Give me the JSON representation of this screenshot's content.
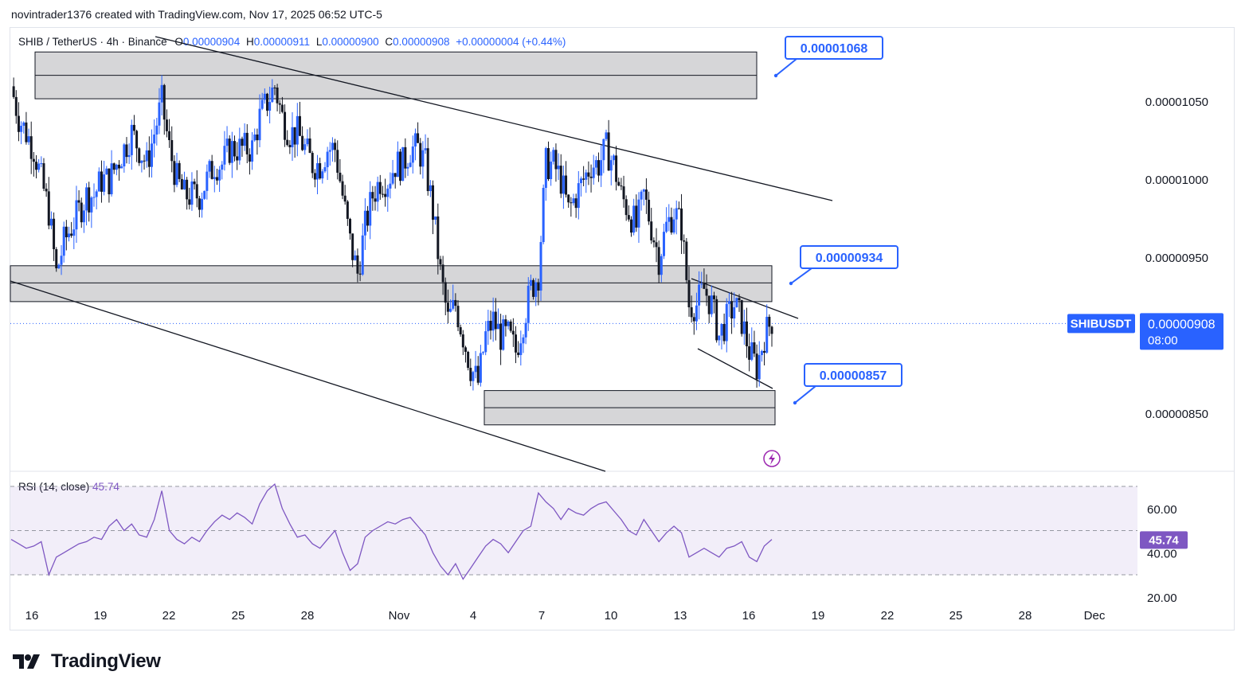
{
  "caption": "novintrader1376 created with TradingView.com, Nov 17, 2025 06:52 UTC-5",
  "symbol_line": "SHIB / TetherUS · 4h · Binance",
  "ohlc": {
    "o_label": "O",
    "o": "0.00000904",
    "h_label": "H",
    "h": "0.00000911",
    "l_label": "L",
    "l": "0.00000900",
    "c_label": "C",
    "c": "0.00000908",
    "change": "+0.00000004 (+0.44%)"
  },
  "rsi": {
    "label": "RSI (14, close)",
    "value": "45.74"
  },
  "brand": "TradingView",
  "colors": {
    "up": "#2962ff",
    "down": "#131722",
    "rsi": "#7e57c2",
    "accent": "#2962ff"
  },
  "chart_data": {
    "type": "candlestick",
    "symbol": "SHIBUSDT",
    "timeframe": "4h",
    "y_ticks": [
      "0.00001050",
      "0.00001000",
      "0.00000950",
      "0.00000850"
    ],
    "ylim": [
      8.2e-06,
      1.11e-05
    ],
    "x_ticks": [
      "16",
      "19",
      "22",
      "25",
      "28",
      "Nov",
      "4",
      "7",
      "10",
      "13",
      "16",
      "19",
      "22",
      "25",
      "28",
      "Dec"
    ],
    "last_price": {
      "symbol": "SHIBUSDT",
      "value": "0.00000908",
      "countdown": "08:00"
    },
    "zones": [
      {
        "from": 1.052e-05,
        "to": 1.082e-05,
        "mid": 1.067e-05
      },
      {
        "from": 9.22e-06,
        "to": 9.45e-06,
        "mid": 9.34e-06
      },
      {
        "from": 8.43e-06,
        "to": 8.65e-06,
        "mid": 8.54e-06
      }
    ],
    "annotations": [
      "0.00001068",
      "0.00000934",
      "0.00000857"
    ],
    "close_path": [
      1.06e-05,
      1.04e-05,
      1.03e-05,
      1.02e-05,
      1e-05,
      9.8e-06,
      9.4e-06,
      9.6e-06,
      9.7e-06,
      9.8e-06,
      9.9e-06,
      9.9e-06,
      1e-05,
      1e-05,
      1.01e-05,
      1.02e-05,
      1.03e-05,
      1.02e-05,
      1.01e-05,
      1.03e-05,
      1.05e-05,
      1.02e-05,
      1e-05,
      9.9e-06,
      9.9e-06,
      9.9e-06,
      1e-05,
      1.01e-05,
      1.01e-05,
      1.02e-05,
      1.02e-05,
      1.02e-05,
      1.02e-05,
      1.04e-05,
      1.05e-05,
      1.06e-05,
      1.04e-05,
      1.03e-05,
      1.03e-05,
      1.02e-05,
      1.01e-05,
      1.01e-05,
      1.02e-05,
      1.02e-05,
      9.9e-06,
      9.6e-06,
      9.4e-06,
      9.7e-06,
      9.9e-06,
      1e-05,
      1e-05,
      1.01e-05,
      1.01e-05,
      1.02e-05,
      1.02e-05,
      1.01e-05,
      9.8e-06,
      9.4e-06,
      9.1e-06,
      9.2e-06,
      9e-06,
      8.8e-06,
      8.7e-06,
      9e-06,
      9.1e-06,
      9e-06,
      9e-06,
      8.9e-06,
      9.1e-06,
      9.3e-06,
      9.4e-06,
      1.01e-05,
      1.01e-05,
      1e-05,
      9.8e-06,
      9.9e-06,
      1e-05,
      1.01e-05,
      1.01e-05,
      1.02e-05,
      1.01e-05,
      9.9e-06,
      9.8e-06,
      9.7e-06,
      9.9e-06,
      9.7e-06,
      9.5e-06,
      9.7e-06,
      9.8e-06,
      9.7e-06,
      9.2e-06,
      9.2e-06,
      9.3e-06,
      9.2e-06,
      9e-06,
      9.1e-06,
      9.2e-06,
      9.1e-06,
      8.9e-06,
      8.8e-06,
      9e-06,
      9.1e-06
    ],
    "rsi": {
      "label": "RSI (14, close)",
      "value": "45.74",
      "band": [
        30,
        70
      ],
      "y_ticks": [
        "60.00",
        "40.00",
        "20.00"
      ],
      "values": [
        46,
        44,
        42,
        43,
        45,
        30,
        38,
        40,
        42,
        44,
        45,
        47,
        46,
        52,
        55,
        50,
        53,
        48,
        47,
        55,
        68,
        50,
        46,
        44,
        47,
        45,
        50,
        54,
        57,
        55,
        58,
        56,
        53,
        62,
        68,
        71,
        60,
        53,
        47,
        48,
        44,
        42,
        46,
        50,
        40,
        32,
        35,
        47,
        50,
        52,
        54,
        53,
        55,
        56,
        52,
        48,
        40,
        34,
        30,
        35,
        28,
        33,
        38,
        43,
        46,
        44,
        40,
        45,
        50,
        52,
        67,
        63,
        60,
        55,
        60,
        58,
        57,
        60,
        62,
        63,
        59,
        55,
        50,
        48,
        55,
        50,
        45,
        49,
        52,
        49,
        38,
        40,
        42,
        40,
        38,
        42,
        43,
        45,
        38,
        36,
        43,
        46
      ]
    }
  }
}
